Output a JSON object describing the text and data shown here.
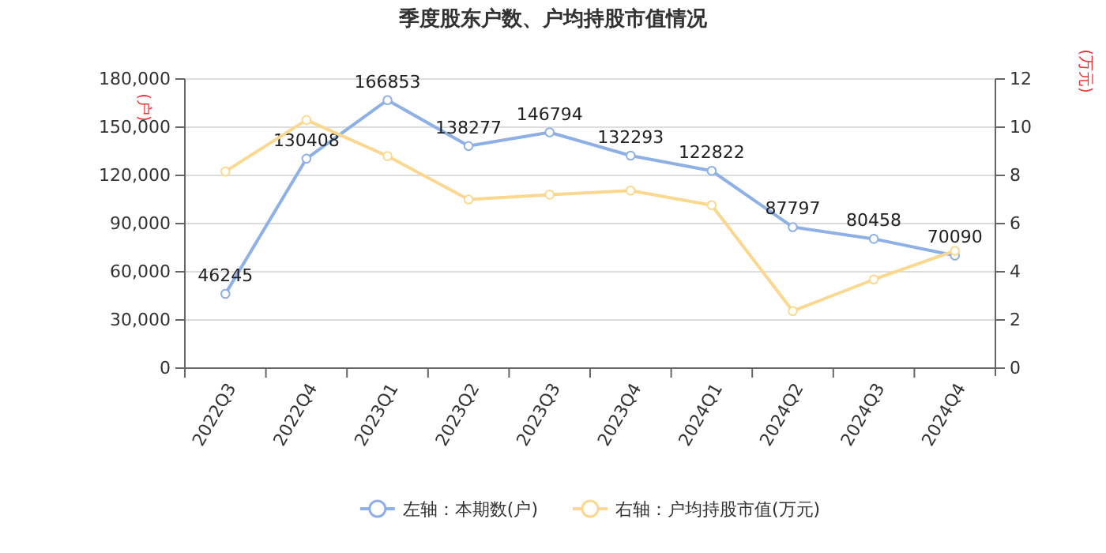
{
  "chart_data": {
    "type": "line",
    "title": "季度股东户数、户均持股市值情况",
    "ylabel": "(户)",
    "y2label": "(万元)",
    "categories": [
      "2022Q3",
      "2022Q4",
      "2023Q1",
      "2023Q2",
      "2023Q3",
      "2023Q4",
      "2024Q1",
      "2024Q2",
      "2024Q3",
      "2024Q4"
    ],
    "series": [
      {
        "name": "左轴：本期数(户)",
        "color": "#8eb0e4",
        "values": [
          46245,
          130408,
          166853,
          138277,
          146794,
          132293,
          122822,
          87797,
          80458,
          70090
        ],
        "value_labels": [
          "46245",
          "130408",
          "166853",
          "138277",
          "146794",
          "132293",
          "122822",
          "87797",
          "80458",
          "70090"
        ]
      },
      {
        "name": "右轴：户均持股市值(万元)",
        "color": "#fbd88f",
        "axis": "y2",
        "values": [
          8.16,
          10.3,
          8.8,
          7.0,
          7.2,
          7.37,
          6.76,
          2.37,
          3.68,
          4.87
        ]
      }
    ],
    "ylim": [
      0,
      180000
    ],
    "yticks": [
      {
        "value": 0,
        "label": "0"
      },
      {
        "value": 30000,
        "label": "30,000"
      },
      {
        "value": 60000,
        "label": "60,000"
      },
      {
        "value": 90000,
        "label": "90,000"
      },
      {
        "value": 120000,
        "label": "120,000"
      },
      {
        "value": 150000,
        "label": "150,000"
      },
      {
        "value": 180000,
        "label": "180,000"
      }
    ],
    "y2lim": [
      0,
      12
    ],
    "y2ticks": [
      0,
      2,
      4,
      6,
      8,
      10,
      12
    ],
    "grid": "y",
    "legend": "bottom",
    "marker": "circle",
    "line_style": "solid"
  }
}
